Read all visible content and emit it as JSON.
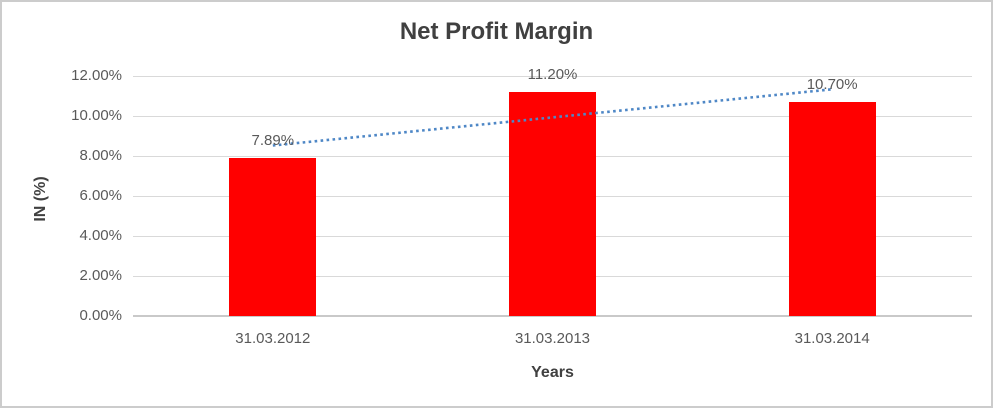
{
  "chart_data": {
    "type": "bar",
    "title": "Net Profit Margin",
    "xlabel": "Years",
    "ylabel": "IN (%)",
    "categories": [
      "31.03.2012",
      "31.03.2013",
      "31.03.2014"
    ],
    "series": [
      {
        "name": "Net Profit Margin",
        "values": [
          7.89,
          11.2,
          10.7
        ],
        "data_labels": [
          "7.89%",
          "11.20%",
          "10.70%"
        ]
      }
    ],
    "y_ticks": [
      {
        "value": 0,
        "label": "0.00%"
      },
      {
        "value": 2,
        "label": "2.00%"
      },
      {
        "value": 4,
        "label": "4.00%"
      },
      {
        "value": 6,
        "label": "6.00%"
      },
      {
        "value": 8,
        "label": "8.00%"
      },
      {
        "value": 10,
        "label": "10.00%"
      },
      {
        "value": 12,
        "label": "12.00%"
      }
    ],
    "ylim": [
      0,
      12
    ],
    "grid": true,
    "legend": "none",
    "trendline": {
      "type": "linear",
      "style": "dotted"
    },
    "colors": {
      "bar_fill": "#ff0000",
      "trendline": "#4e87c6",
      "gridline": "#d9d9d9",
      "axis_line": "#c9c9c9",
      "tick_text": "#595959",
      "title_text": "#404040",
      "border": "#cccccc"
    }
  }
}
